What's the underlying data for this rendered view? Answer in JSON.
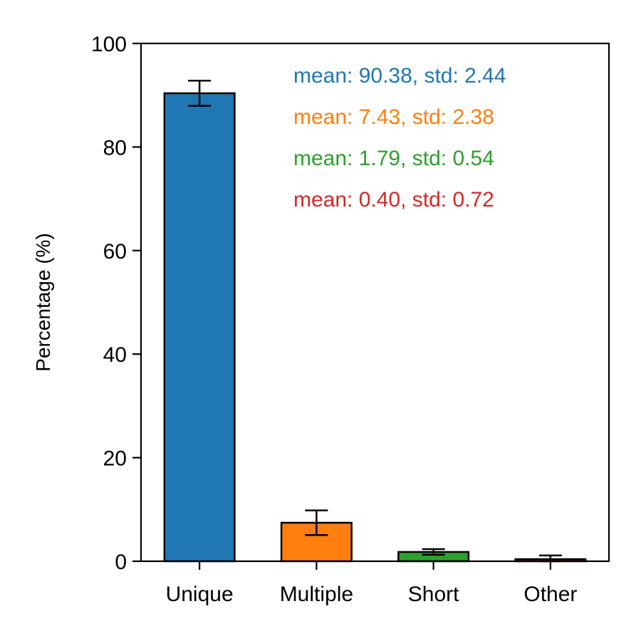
{
  "chart_data": {
    "type": "bar",
    "title": "",
    "xlabel": "",
    "ylabel": "Percentage (%)",
    "ylim": [
      0,
      100
    ],
    "yticks": [
      0,
      20,
      40,
      60,
      80,
      100
    ],
    "grid": false,
    "categories": [
      "Unique",
      "Multiple",
      "Short",
      "Other"
    ],
    "values": [
      90.38,
      7.43,
      1.79,
      0.4
    ],
    "errors": [
      2.44,
      2.38,
      0.54,
      0.72
    ],
    "colors": [
      "#1f77b4",
      "#ff7f0e",
      "#2ca02c",
      "#d62728"
    ],
    "annotations": [
      {
        "text": "mean: 90.38, std: 2.44",
        "color": "#1f77b4"
      },
      {
        "text": "mean: 7.43, std: 2.38",
        "color": "#ff7f0e"
      },
      {
        "text": "mean: 1.79, std: 0.54",
        "color": "#2ca02c"
      },
      {
        "text": "mean: 0.40, std: 0.72",
        "color": "#d62728"
      }
    ]
  }
}
